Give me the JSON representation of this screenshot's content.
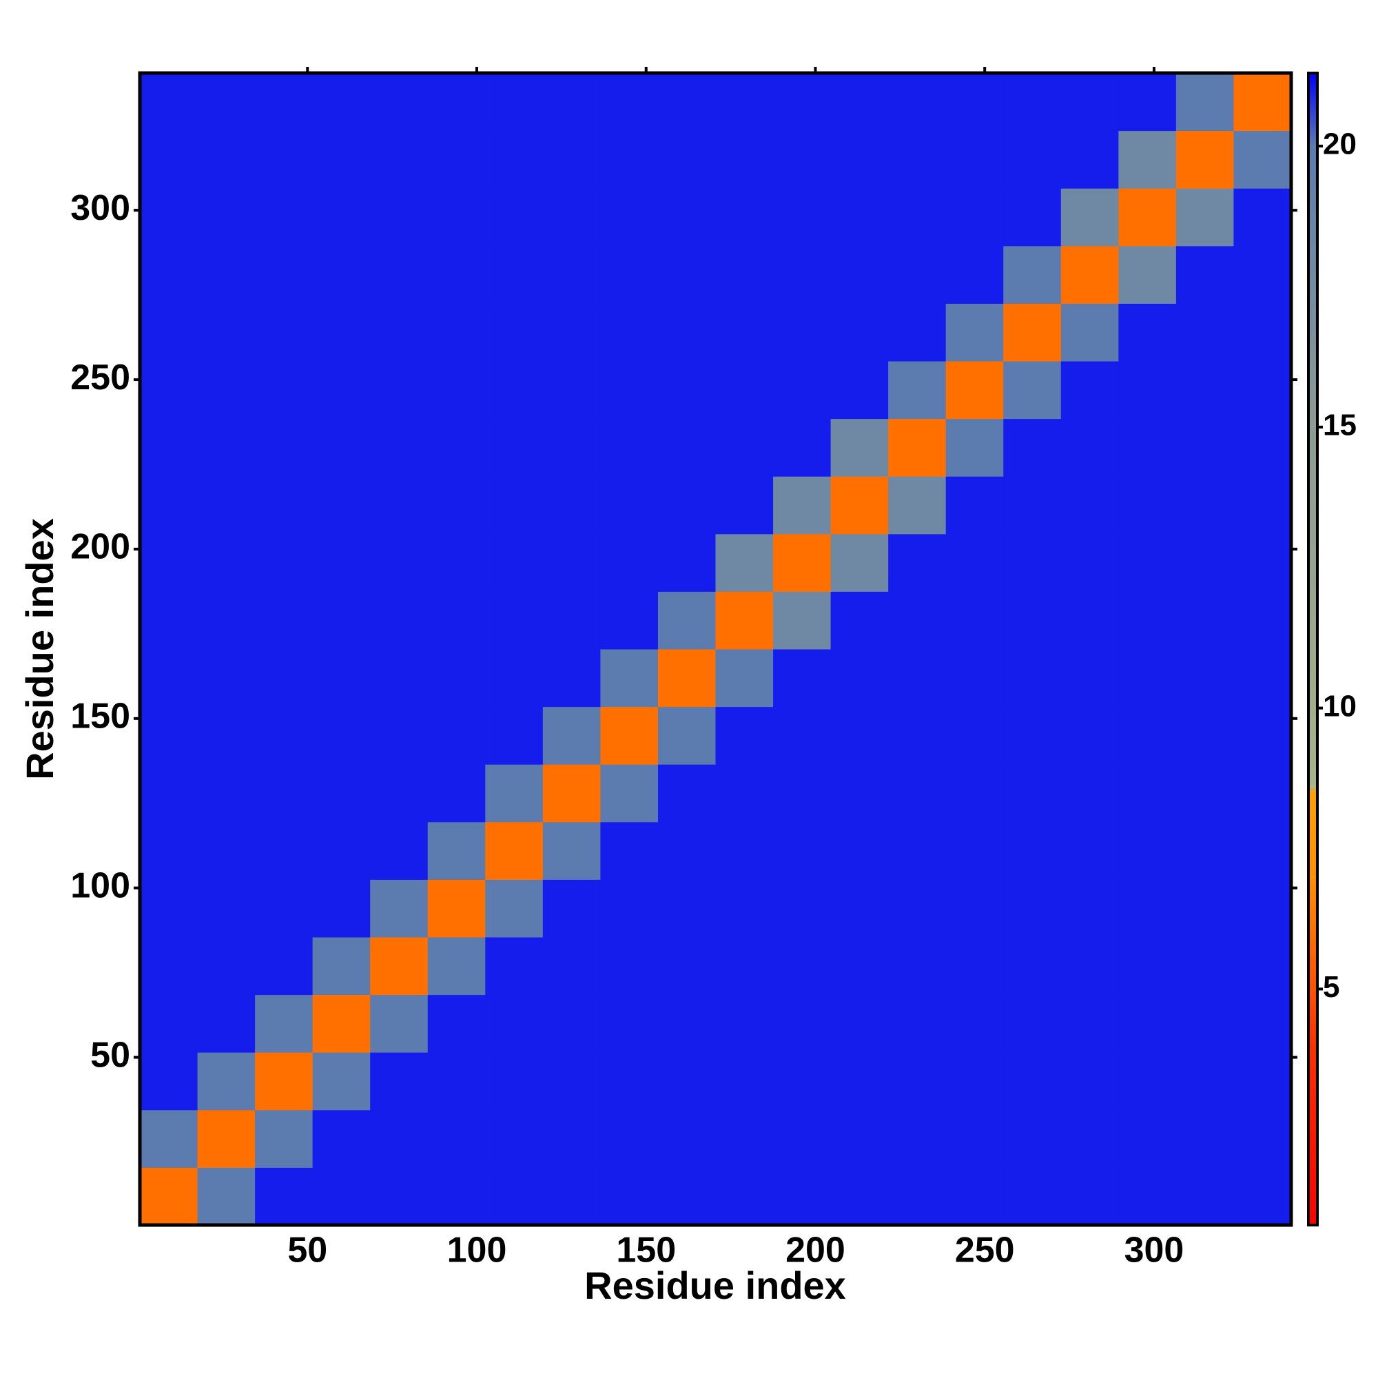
{
  "chart_data": {
    "type": "heatmap",
    "x_label": "Residue index",
    "y_label": "Residue index",
    "xlim": [
      0.5,
      340.5
    ],
    "ylim": [
      0.5,
      340.5
    ],
    "xticks": [
      50,
      100,
      150,
      200,
      250,
      300
    ],
    "yticks": [
      50,
      100,
      150,
      200,
      250,
      300
    ],
    "zlim": [
      0.8,
      21.3
    ],
    "zticks": [
      5,
      10,
      15,
      20
    ],
    "colorscale": [
      [
        0.8,
        "#ff0000"
      ],
      [
        4,
        "#ff3000"
      ],
      [
        7,
        "#ff9000"
      ],
      [
        8.5,
        "#ffa000"
      ],
      [
        8.6,
        "#a8b488"
      ],
      [
        15,
        "#8c9c94"
      ],
      [
        20,
        "#5c7cb0"
      ],
      [
        21.3,
        "#0000ff"
      ]
    ],
    "z": [
      [
        6,
        20,
        21,
        21,
        21,
        21,
        21,
        21,
        21,
        21,
        21,
        21,
        21,
        21,
        21,
        21,
        21,
        21,
        21,
        21
      ],
      [
        20,
        6,
        20,
        21,
        21,
        21,
        21,
        21,
        21,
        21,
        21,
        21,
        21,
        21,
        21,
        21,
        21,
        21,
        21,
        21
      ],
      [
        21,
        20,
        6,
        20,
        21,
        21,
        21,
        21,
        21,
        21,
        21,
        21,
        21,
        21,
        21,
        21,
        21,
        21,
        21,
        21
      ],
      [
        21,
        21,
        20,
        6,
        20,
        21,
        21,
        21,
        21,
        21,
        21,
        21,
        21,
        21,
        21,
        21,
        21,
        21,
        21,
        21
      ],
      [
        21,
        21,
        21,
        20,
        6,
        20,
        21,
        21,
        21,
        21,
        21,
        21,
        21,
        21,
        21,
        21,
        21,
        21,
        21,
        21
      ],
      [
        21,
        21,
        21,
        21,
        20,
        6,
        20,
        21,
        21,
        21,
        21,
        21,
        21,
        21,
        21,
        21,
        21,
        21,
        21,
        21
      ],
      [
        21,
        21,
        21,
        21,
        21,
        20,
        6,
        20,
        21,
        21,
        21,
        21,
        21,
        21,
        21,
        21,
        21,
        21,
        21,
        21
      ],
      [
        21,
        21,
        21,
        21,
        21,
        21,
        20,
        6,
        20,
        21,
        21,
        21,
        21,
        21,
        21,
        21,
        21,
        21,
        21,
        21
      ],
      [
        21,
        21,
        21,
        21,
        21,
        21,
        21,
        20,
        6,
        20,
        21,
        21,
        21,
        21,
        21,
        21,
        21,
        21,
        21,
        21
      ],
      [
        21,
        21,
        21,
        21,
        21,
        21,
        21,
        21,
        20,
        6,
        20,
        21,
        21,
        21,
        21,
        21,
        21,
        21,
        21,
        21
      ],
      [
        21,
        21,
        21,
        21,
        21,
        21,
        21,
        21,
        21,
        20,
        6,
        18,
        21,
        21,
        21,
        21,
        21,
        21,
        21,
        21
      ],
      [
        21,
        21,
        21,
        21,
        21,
        21,
        21,
        21,
        21,
        21,
        18,
        6,
        18,
        21,
        21,
        21,
        21,
        21,
        21,
        21
      ],
      [
        21,
        21,
        21,
        21,
        21,
        21,
        21,
        21,
        21,
        21,
        21,
        18,
        6,
        18,
        21,
        21,
        21,
        21,
        21,
        21
      ],
      [
        21,
        21,
        21,
        21,
        21,
        21,
        21,
        21,
        21,
        21,
        21,
        21,
        18,
        6,
        20,
        21,
        21,
        21,
        21,
        21
      ],
      [
        21,
        21,
        21,
        21,
        21,
        21,
        21,
        21,
        21,
        21,
        21,
        21,
        21,
        20,
        6,
        20,
        21,
        21,
        21,
        21
      ],
      [
        21,
        21,
        21,
        21,
        21,
        21,
        21,
        21,
        21,
        21,
        21,
        21,
        21,
        21,
        20,
        6,
        20,
        21,
        21,
        21
      ],
      [
        21,
        21,
        21,
        21,
        21,
        21,
        21,
        21,
        21,
        21,
        21,
        21,
        21,
        21,
        21,
        20,
        6,
        18,
        21,
        21
      ],
      [
        21,
        21,
        21,
        21,
        21,
        21,
        21,
        21,
        21,
        21,
        21,
        21,
        21,
        21,
        21,
        21,
        18,
        6,
        18,
        21
      ],
      [
        21,
        21,
        21,
        21,
        21,
        21,
        21,
        21,
        21,
        21,
        21,
        21,
        21,
        21,
        21,
        21,
        21,
        18,
        6,
        20
      ],
      [
        21,
        21,
        21,
        21,
        21,
        21,
        21,
        21,
        21,
        21,
        21,
        21,
        21,
        21,
        21,
        21,
        21,
        21,
        20,
        6
      ]
    ]
  }
}
